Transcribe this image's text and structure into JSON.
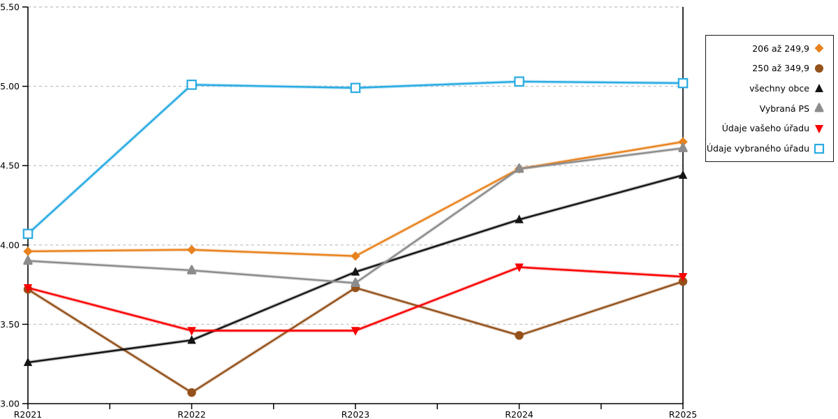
{
  "chart_data": {
    "type": "line",
    "title": "",
    "xlabel": "",
    "ylabel": "",
    "x_labels": [
      "R2021",
      "R2022",
      "R2023",
      "R2024",
      "R2025"
    ],
    "ylim": [
      3.0,
      5.5
    ],
    "ytick_step": 0.5,
    "ytick_labels": [
      "3.00",
      "3.50",
      "4.00",
      "4.50",
      "5.00",
      "5.50"
    ],
    "grid": "horizontal-dashed",
    "legend_position": "right-outside",
    "series": [
      {
        "name": "206 až 249,9",
        "marker": "diamond",
        "color": "#E8821E",
        "values": [
          3.96,
          3.97,
          3.93,
          4.48,
          4.65
        ]
      },
      {
        "name": "250 až 349,9",
        "marker": "circle",
        "color": "#94511A",
        "values": [
          3.72,
          3.07,
          3.73,
          3.43,
          3.77
        ]
      },
      {
        "name": "všechny obce",
        "marker": "triangle-up",
        "color": "#141414",
        "values": [
          3.26,
          3.4,
          3.83,
          4.16,
          4.44
        ]
      },
      {
        "name": "Vybraná PS",
        "marker": "triangle-up-rounded",
        "color": "#8C8C8C",
        "values": [
          3.9,
          3.84,
          3.76,
          4.48,
          4.61
        ]
      },
      {
        "name": "Údaje vašeho úřadu",
        "marker": "triangle-down",
        "color": "#F80000",
        "values": [
          3.73,
          3.46,
          3.46,
          3.86,
          3.8
        ]
      },
      {
        "name": "Údaje vybraného úřadu",
        "marker": "square-open",
        "color": "#29ABE2",
        "values": [
          4.07,
          5.01,
          4.99,
          5.03,
          5.02
        ]
      }
    ]
  },
  "colors": {
    "background": "#FFFFFF",
    "axis": "#000000",
    "grid": "#C8C8C8",
    "tick_text": "#000000",
    "legend_border": "#1A1A1A"
  }
}
